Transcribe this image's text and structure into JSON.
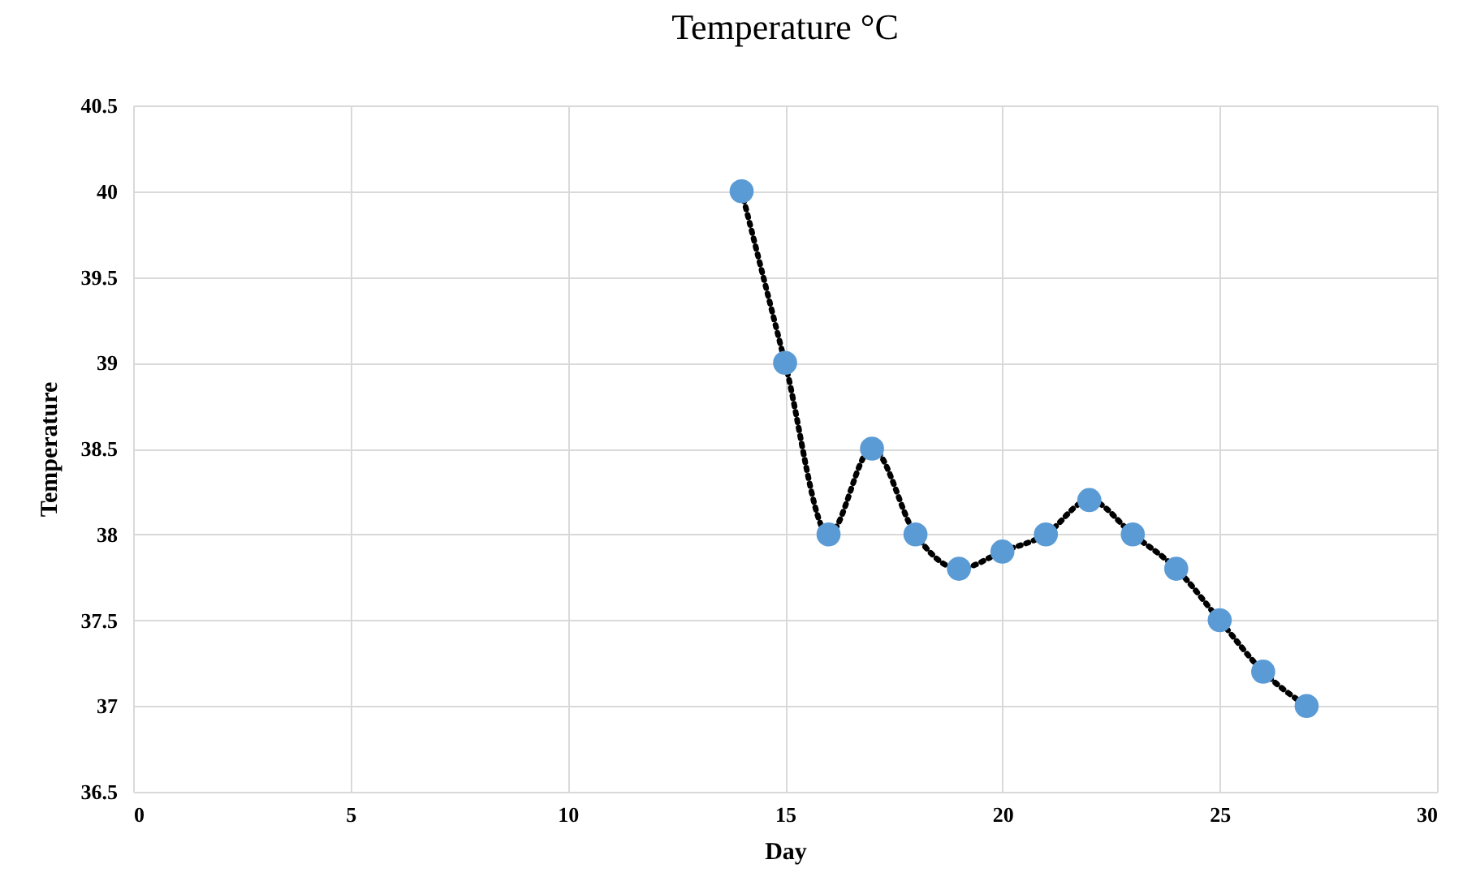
{
  "chart_data": {
    "type": "line",
    "title": "Temperature °C",
    "xlabel": "Day",
    "ylabel": "Temperature",
    "x": [
      14,
      15,
      16,
      17,
      18,
      19,
      20,
      21,
      22,
      23,
      24,
      25,
      26,
      27
    ],
    "series": [
      {
        "color": "#5b9bd5",
        "values": [
          40,
          39,
          38,
          38.5,
          38,
          37.8,
          37.9,
          38,
          38.2,
          38,
          37.8,
          37.5,
          37.2,
          37
        ]
      }
    ],
    "xlim": [
      0,
      30
    ],
    "xticks": [
      0,
      5,
      10,
      15,
      20,
      25,
      30
    ],
    "ylim": [
      36.5,
      40.5
    ],
    "yticks": [
      36.5,
      37,
      37.5,
      38,
      38.5,
      39,
      39.5,
      40,
      40.5
    ],
    "grid": true,
    "legend": false,
    "marker": "circle",
    "line_style": "dotted"
  }
}
